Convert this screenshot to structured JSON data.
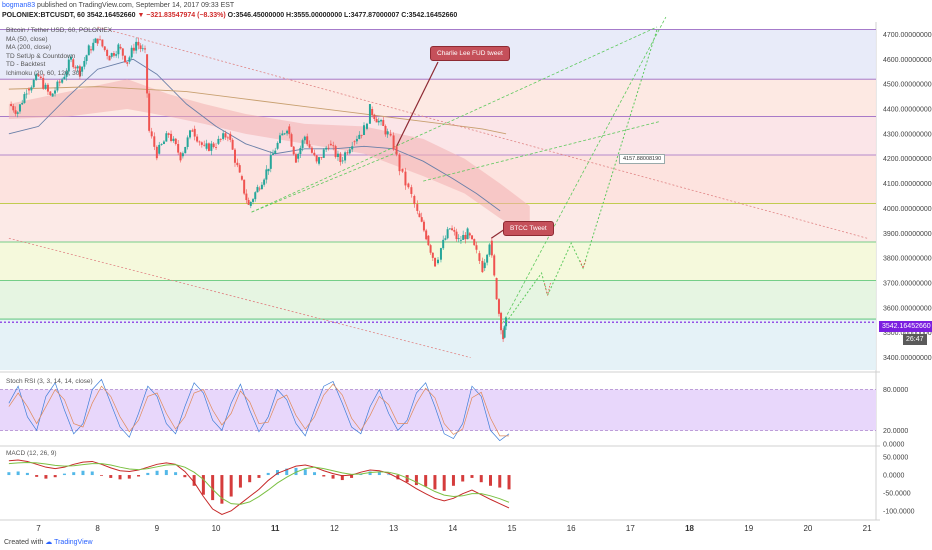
{
  "header": {
    "user": "bogman83",
    "published": "published on TradingView.com, September 14, 2017 09:33 EST",
    "symbol_line": "POLONIEX:BTCUSDT, 60",
    "last": "3542.16452660",
    "change": "▼ −321.83547974 (−8.33%)",
    "ohlc": "O:3546.45000000  H:3555.00000000  L:3477.87000007  C:3542.16452660"
  },
  "legend": [
    "Bitcoin / Tether USD, 60, POLONIEX",
    "MA (50, close)",
    "MA (200, close)",
    "TD SetUp & Countdown",
    "TD - Backtest",
    "Ichimoku (20, 60, 120, 30)"
  ],
  "annotations": {
    "charlie": "Charlie Lee FUD tweet",
    "btcc": "BTCC Tweet",
    "target": "4157.88008190"
  },
  "badges": {
    "price": "3542.16452660",
    "time": "26:47"
  },
  "footer": {
    "created": "Created with",
    "brand": "TradingView"
  },
  "colors": {
    "up": "#26a69a",
    "down": "#ef5350",
    "ma50": "#6a7fa8",
    "ma200": "#c8a070",
    "fib_line": "#9c6bc4",
    "cloud": "#f3b0b0",
    "price_line": "#7b1fe0",
    "trend": "#e08585",
    "projection": "#5dc95d",
    "target_line": "#9b59b6"
  },
  "chart_data": [
    {
      "type": "candlestick",
      "title": "Bitcoin / Tether USD, 60, POLONIEX",
      "ylim": [
        3350,
        4750
      ],
      "y_ticks": [
        "4700.00000000",
        "4600.00000000",
        "4500.00000000",
        "4400.00000000",
        "4300.00000000",
        "4200.00000000",
        "4100.00000000",
        "4000.00000000",
        "3900.00000000",
        "3800.00000000",
        "3700.00000000",
        "3600.00000000",
        "3500.00000000",
        "3400.00000000"
      ],
      "x_ticks": [
        "7",
        "8",
        "9",
        "10",
        "11",
        "12",
        "13",
        "14",
        "15",
        "16",
        "17",
        "18",
        "19",
        "20",
        "21"
      ],
      "x_days": [
        7,
        8,
        9,
        10,
        11,
        12,
        13,
        14,
        15,
        16,
        17,
        18,
        19,
        20,
        21
      ],
      "fib_levels": [
        4720,
        4520,
        4370,
        4215,
        4020,
        3865,
        3710,
        3555
      ],
      "last_price": 3542.1645266,
      "price_path": [
        [
          6.5,
          4420
        ],
        [
          6.65,
          4390
        ],
        [
          6.8,
          4480
        ],
        [
          7.0,
          4530
        ],
        [
          7.2,
          4450
        ],
        [
          7.4,
          4520
        ],
        [
          7.55,
          4600
        ],
        [
          7.7,
          4550
        ],
        [
          7.85,
          4640
        ],
        [
          8.0,
          4680
        ],
        [
          8.2,
          4610
        ],
        [
          8.35,
          4650
        ],
        [
          8.5,
          4590
        ],
        [
          8.65,
          4670
        ],
        [
          8.8,
          4620
        ],
        [
          8.87,
          4310
        ],
        [
          9.0,
          4220
        ],
        [
          9.2,
          4300
        ],
        [
          9.4,
          4210
        ],
        [
          9.6,
          4320
        ],
        [
          9.8,
          4240
        ],
        [
          10.0,
          4260
        ],
        [
          10.2,
          4300
        ],
        [
          10.4,
          4130
        ],
        [
          10.55,
          4010
        ],
        [
          10.7,
          4080
        ],
        [
          10.85,
          4150
        ],
        [
          11.0,
          4240
        ],
        [
          11.2,
          4330
        ],
        [
          11.35,
          4200
        ],
        [
          11.5,
          4290
        ],
        [
          11.7,
          4180
        ],
        [
          11.9,
          4260
        ],
        [
          12.1,
          4190
        ],
        [
          12.3,
          4270
        ],
        [
          12.5,
          4320
        ],
        [
          12.6,
          4400
        ],
        [
          12.75,
          4350
        ],
        [
          12.9,
          4300
        ],
        [
          13.0,
          4250
        ],
        [
          13.1,
          4160
        ],
        [
          13.2,
          4100
        ],
        [
          13.3,
          4050
        ],
        [
          13.4,
          3980
        ],
        [
          13.55,
          3890
        ],
        [
          13.7,
          3780
        ],
        [
          13.8,
          3840
        ],
        [
          13.95,
          3920
        ],
        [
          14.1,
          3870
        ],
        [
          14.25,
          3900
        ],
        [
          14.4,
          3820
        ],
        [
          14.5,
          3760
        ],
        [
          14.62,
          3870
        ],
        [
          14.7,
          3720
        ],
        [
          14.78,
          3580
        ],
        [
          14.85,
          3480
        ],
        [
          14.9,
          3542
        ]
      ],
      "projection_path": [
        [
          14.9,
          3542
        ],
        [
          15.5,
          3740
        ],
        [
          15.6,
          3650
        ],
        [
          16.0,
          3860
        ],
        [
          16.2,
          3760
        ],
        [
          17.45,
          4720
        ]
      ],
      "channel_lines": [
        [
          [
            10.6,
            3985
          ],
          [
            13.1,
            4230
          ]
        ],
        [
          [
            10.6,
            3985
          ],
          [
            17.45,
            4730
          ]
        ],
        [
          [
            13.5,
            4110
          ],
          [
            17.5,
            4350
          ]
        ],
        [
          [
            14.8,
            3520
          ],
          [
            17.6,
            4770
          ]
        ]
      ],
      "trend_lines": [
        [
          [
            8.0,
            4730
          ],
          [
            21.0,
            3880
          ]
        ],
        [
          [
            6.5,
            3880
          ],
          [
            14.3,
            3400
          ]
        ]
      ]
    },
    {
      "type": "line",
      "title": "Stoch RSI (3, 3, 14, 14, close)",
      "ylim": [
        0,
        100
      ],
      "y_ticks": [
        "80.0000",
        "20.0000",
        "0.0000"
      ],
      "band": [
        20,
        80
      ],
      "series": [
        {
          "name": "K",
          "values": [
            60,
            85,
            40,
            20,
            70,
            90,
            50,
            15,
            30,
            80,
            95,
            60,
            25,
            10,
            45,
            85,
            70,
            30,
            15,
            55,
            90,
            75,
            35,
            20,
            60,
            88,
            50,
            18,
            40,
            80,
            65,
            30,
            12,
            50,
            85,
            92,
            60,
            25,
            15,
            55,
            80,
            45,
            20,
            35,
            75,
            90,
            55,
            15,
            8,
            30,
            85,
            70,
            20,
            5,
            15
          ]
        },
        {
          "name": "D",
          "values": [
            55,
            75,
            55,
            30,
            55,
            80,
            65,
            30,
            25,
            60,
            85,
            70,
            40,
            18,
            35,
            70,
            75,
            45,
            22,
            40,
            75,
            80,
            50,
            28,
            45,
            78,
            62,
            30,
            32,
            65,
            72,
            42,
            22,
            40,
            72,
            88,
            72,
            38,
            20,
            42,
            70,
            58,
            30,
            30,
            60,
            82,
            68,
            30,
            14,
            22,
            68,
            76,
            38,
            12,
            12
          ]
        }
      ]
    },
    {
      "type": "bar",
      "title": "MACD (12, 26, 9)",
      "ylim": [
        -120,
        70
      ],
      "y_ticks": [
        "50.0000",
        "0.0000",
        "-50.0000",
        "-100.0000"
      ],
      "histogram": [
        8,
        10,
        6,
        -5,
        -10,
        -6,
        4,
        8,
        12,
        10,
        -2,
        -8,
        -12,
        -10,
        -4,
        6,
        12,
        14,
        8,
        -6,
        -30,
        -55,
        -70,
        -80,
        -60,
        -35,
        -20,
        -8,
        6,
        14,
        18,
        20,
        16,
        8,
        -4,
        -10,
        -14,
        -8,
        4,
        10,
        8,
        2,
        -12,
        -20,
        -28,
        -32,
        -40,
        -44,
        -30,
        -18,
        -8,
        -20,
        -30,
        -35,
        -40
      ],
      "series": [
        {
          "name": "MACD",
          "values": [
            40,
            42,
            38,
            30,
            22,
            18,
            22,
            30,
            36,
            38,
            30,
            20,
            12,
            10,
            14,
            22,
            30,
            34,
            30,
            10,
            -20,
            -60,
            -95,
            -110,
            -100,
            -80,
            -60,
            -40,
            -15,
            5,
            15,
            25,
            28,
            22,
            12,
            4,
            -2,
            0,
            8,
            14,
            12,
            5,
            -8,
            -22,
            -38,
            -52,
            -65,
            -72,
            -65,
            -52,
            -42,
            -55,
            -68,
            -80,
            -92
          ]
        },
        {
          "name": "Signal",
          "values": [
            32,
            34,
            35,
            34,
            31,
            27,
            25,
            26,
            29,
            32,
            32,
            28,
            22,
            17,
            15,
            18,
            23,
            28,
            29,
            22,
            8,
            -12,
            -40,
            -65,
            -80,
            -82,
            -75,
            -60,
            -42,
            -22,
            -6,
            8,
            18,
            22,
            18,
            12,
            6,
            2,
            3,
            7,
            9,
            8,
            2,
            -8,
            -20,
            -33,
            -46,
            -56,
            -60,
            -58,
            -52,
            -52,
            -58,
            -66,
            -76
          ]
        }
      ]
    }
  ]
}
